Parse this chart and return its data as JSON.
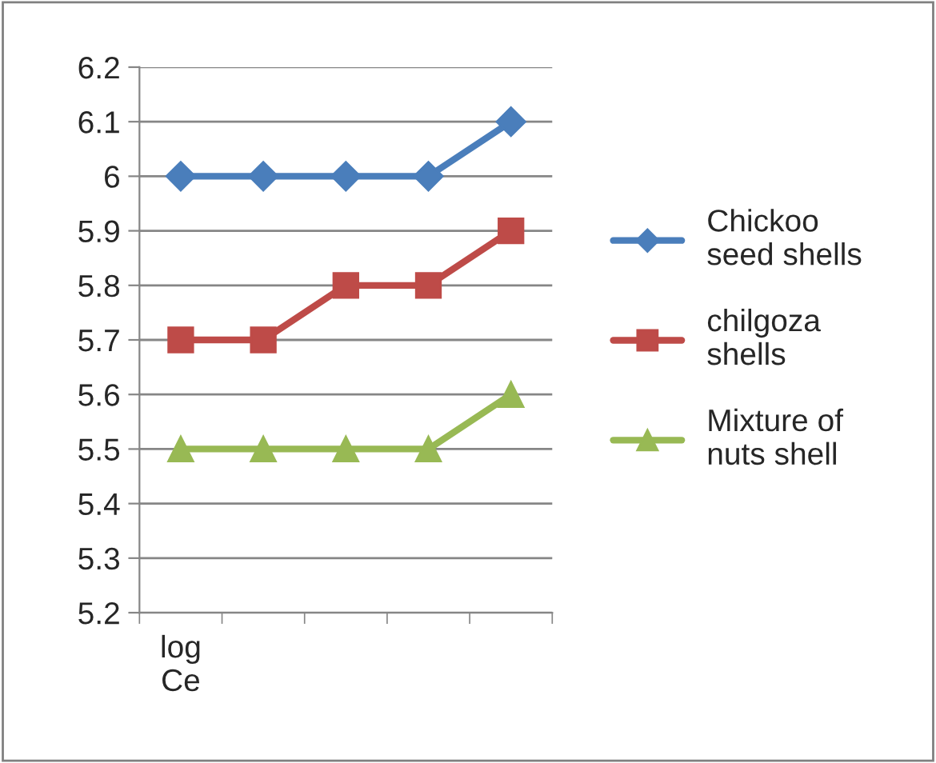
{
  "chart_data": {
    "type": "line",
    "categories": [
      "log\nCe",
      null,
      null,
      null,
      null
    ],
    "series": [
      {
        "name": "Chickoo\nseed shells",
        "color": "#4a7ebb",
        "marker": "diamond",
        "values": [
          6.0,
          6.0,
          6.0,
          6.0,
          6.1
        ]
      },
      {
        "name": "chilgoza\nshells",
        "color": "#be4b48",
        "marker": "square",
        "values": [
          5.7,
          5.7,
          5.8,
          5.8,
          5.9
        ]
      },
      {
        "name": "Mixture of\nnuts shell",
        "color": "#98b954",
        "marker": "triangle",
        "values": [
          5.5,
          5.5,
          5.5,
          5.5,
          5.6
        ]
      }
    ],
    "ylim": [
      5.2,
      6.2
    ],
    "yticks": [
      {
        "value": 5.2,
        "label": "5.2"
      },
      {
        "value": 5.3,
        "label": "5.3"
      },
      {
        "value": 5.4,
        "label": "5.4"
      },
      {
        "value": 5.5,
        "label": "5.5"
      },
      {
        "value": 5.6,
        "label": "5.6"
      },
      {
        "value": 5.7,
        "label": "5.7"
      },
      {
        "value": 5.8,
        "label": "5.8"
      },
      {
        "value": 5.9,
        "label": "5.9"
      },
      {
        "value": 6,
        "label": "6"
      },
      {
        "value": 6.1,
        "label": "6.1"
      },
      {
        "value": 6.2,
        "label": "6.2"
      }
    ],
    "grid": "y",
    "legend": "right",
    "line_style": "solid"
  }
}
